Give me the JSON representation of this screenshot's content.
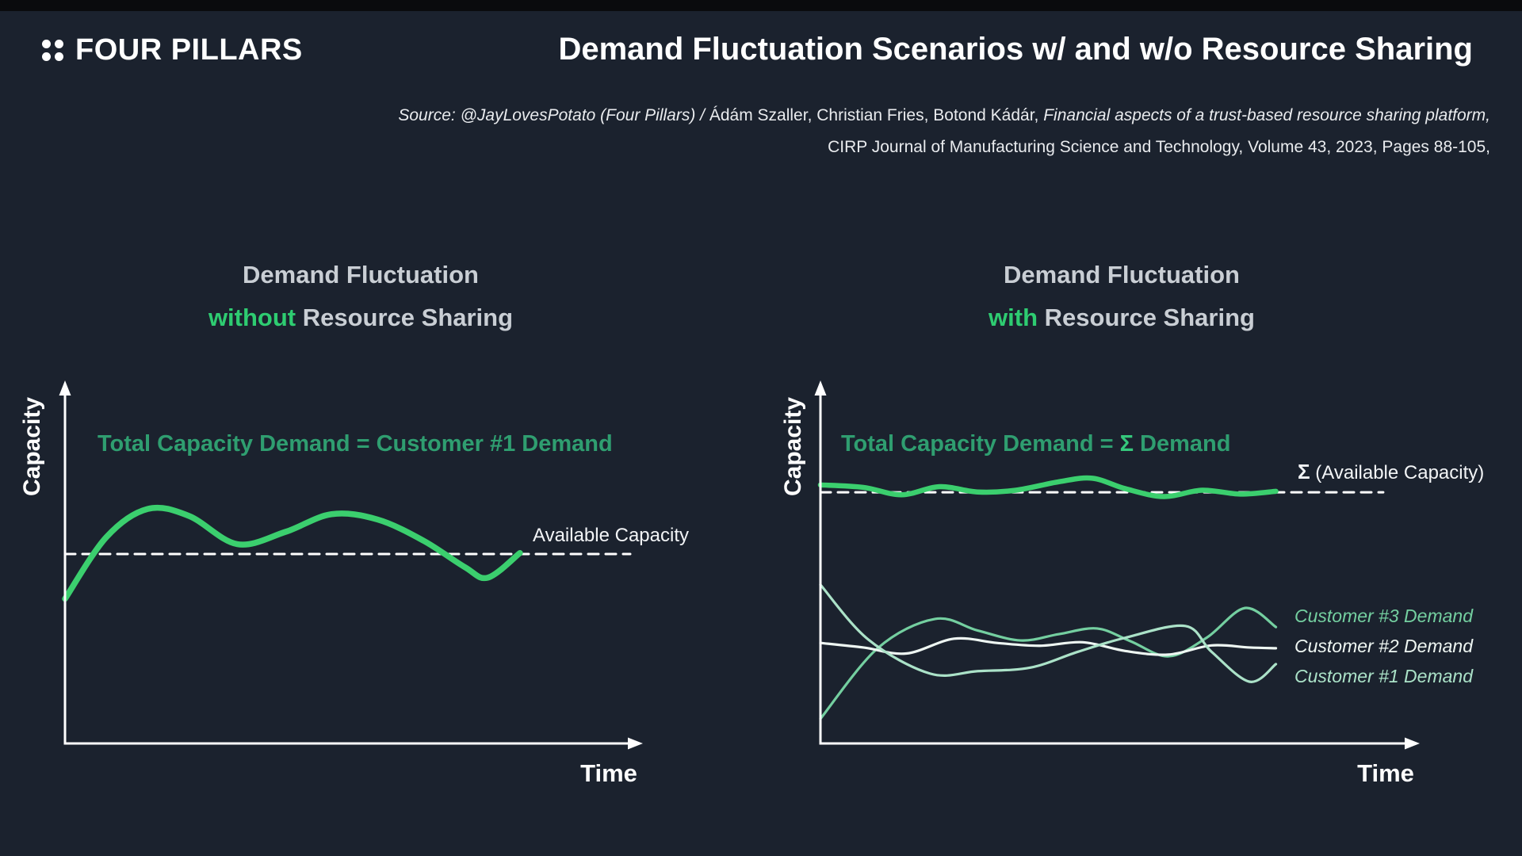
{
  "page": {
    "background": "#1b222e",
    "top_bar_color": "#0a0b0d"
  },
  "header": {
    "brand": "FOUR PILLARS",
    "title": "Demand Fluctuation Scenarios w/ and w/o Resource Sharing",
    "source": {
      "line1_lead_italic": "Source: @JayLovesPotato (Four Pillars) / ",
      "line1_authors": "Ádám Szaller, Christian Fries, Botond Kádár, ",
      "line1_paper_italic": "Financial aspects of a trust-based resource sharing platform,",
      "line2": "CIRP Journal of Manufacturing Science and Technology, Volume 43, 2023, Pages 88-105,"
    }
  },
  "panels": {
    "left": {
      "title_line1": "Demand Fluctuation",
      "title_highlight": "without",
      "title_rest": " Resource Sharing",
      "y_axis_label": "Capacity",
      "x_axis_label": "Time",
      "annotation": "Total Capacity Demand = Customer #1 Demand",
      "annotation_color": "#2f9e70",
      "capacity_line_label": "Available Capacity"
    },
    "right": {
      "title_line1": "Demand Fluctuation",
      "title_highlight": "with",
      "title_rest": " Resource Sharing",
      "y_axis_label": "Capacity",
      "x_axis_label": "Time",
      "annotation_prefix": "Total Capacity Demand = ",
      "annotation_sigma": "Σ",
      "annotation_suffix": " Demand",
      "annotation_color": "#2f9e70",
      "annotation_sigma_color": "#35c87c",
      "capacity_label_sigma": "Σ",
      "capacity_label_rest": " (Available Capacity)",
      "legend": [
        {
          "label": "Customer #3 Demand",
          "color": "#74cfa0"
        },
        {
          "label": "Customer #2 Demand",
          "color": "#eef6f2"
        },
        {
          "label": "Customer #1 Demand",
          "color": "#abe2c8"
        }
      ]
    }
  },
  "colors": {
    "accent_green": "#2ecc71",
    "line_green": "#3bcf6e",
    "annotation_teal": "#2f9e70",
    "title_gray": "#c9ced4",
    "axis_white": "#ffffff"
  },
  "chart_data": [
    {
      "type": "line",
      "title": "Demand Fluctuation without Resource Sharing",
      "xlabel": "Time",
      "ylabel": "Capacity",
      "axes_numeric": false,
      "grid": false,
      "xlim": [
        0,
        12.3
      ],
      "ylim": [
        0,
        1
      ],
      "note": "Conceptual chart; values normalized 0-1 of capacity axis",
      "series": [
        {
          "name": "Available Capacity",
          "style": "dashed",
          "color": "#ffffff",
          "width": 3,
          "x": [
            0,
            12.3
          ],
          "values": [
            0.537,
            0.537
          ]
        },
        {
          "name": "Total Capacity Demand = Customer #1 Demand",
          "style": "solid",
          "color": "#3bcf6e",
          "width": 7.5,
          "x": [
            0,
            0.9,
            1.8,
            2.7,
            3.75,
            4.8,
            5.8,
            6.8,
            7.8,
            8.7,
            9.2,
            9.9
          ],
          "values": [
            0.41,
            0.585,
            0.665,
            0.645,
            0.565,
            0.6,
            0.65,
            0.635,
            0.575,
            0.5,
            0.47,
            0.54
          ]
        }
      ]
    },
    {
      "type": "line",
      "title": "Demand Fluctuation with Resource Sharing",
      "xlabel": "Time",
      "ylabel": "Capacity",
      "axes_numeric": false,
      "grid": false,
      "xlim": [
        0,
        12.3
      ],
      "ylim": [
        0,
        1
      ],
      "note": "Conceptual chart; values normalized 0-1 of capacity axis",
      "series": [
        {
          "name": "Σ (Available Capacity)",
          "style": "dashed",
          "color": "#ffffff",
          "width": 3,
          "x": [
            0,
            11.8
          ],
          "values": [
            0.712,
            0.712
          ]
        },
        {
          "name": "Total Capacity Demand = Σ Demand",
          "style": "solid",
          "color": "#3bcf6e",
          "width": 6.5,
          "x": [
            0,
            0.9,
            1.7,
            2.5,
            3.3,
            4.1,
            5.0,
            5.7,
            6.4,
            7.2,
            8.0,
            8.8,
            9.55
          ],
          "values": [
            0.733,
            0.726,
            0.705,
            0.728,
            0.713,
            0.718,
            0.742,
            0.752,
            0.722,
            0.7,
            0.718,
            0.707,
            0.715
          ]
        },
        {
          "name": "Customer #3 Demand",
          "style": "solid",
          "color": "#74cfa0",
          "width": 3.2,
          "x": [
            0,
            1.2,
            2.4,
            3.3,
            4.2,
            5.0,
            5.8,
            6.5,
            7.3,
            8.1,
            8.9,
            9.55
          ],
          "values": [
            0.07,
            0.27,
            0.353,
            0.32,
            0.292,
            0.31,
            0.326,
            0.29,
            0.247,
            0.3,
            0.384,
            0.33
          ]
        },
        {
          "name": "Customer #2 Demand",
          "style": "solid",
          "color": "#eef6f2",
          "width": 3.2,
          "x": [
            0,
            0.9,
            1.8,
            2.8,
            3.7,
            4.6,
            5.5,
            6.4,
            7.3,
            8.2,
            9.0,
            9.55
          ],
          "values": [
            0.285,
            0.272,
            0.255,
            0.297,
            0.285,
            0.277,
            0.287,
            0.262,
            0.252,
            0.278,
            0.272,
            0.27
          ]
        },
        {
          "name": "Customer #1 Demand",
          "style": "solid",
          "color": "#abe2c8",
          "width": 3.2,
          "x": [
            0,
            1.0,
            2.3,
            3.3,
            4.4,
            5.4,
            6.4,
            7.65,
            8.2,
            9.0,
            9.55
          ],
          "values": [
            0.45,
            0.295,
            0.198,
            0.205,
            0.215,
            0.26,
            0.3,
            0.333,
            0.26,
            0.175,
            0.225
          ]
        }
      ]
    }
  ]
}
